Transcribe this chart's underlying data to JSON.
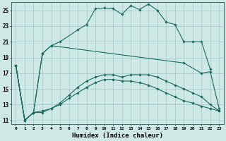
{
  "xlabel": "Humidex (Indice chaleur)",
  "background_color": "#cde8e5",
  "grid_color": "#a0c8c4",
  "line_color": "#1a6b5a",
  "xlim": [
    -0.5,
    23.5
  ],
  "ylim": [
    10.5,
    26.0
  ],
  "yticks": [
    11,
    13,
    15,
    17,
    19,
    21,
    23,
    25
  ],
  "xticks": [
    0,
    1,
    2,
    3,
    4,
    5,
    6,
    7,
    8,
    9,
    10,
    11,
    12,
    13,
    14,
    15,
    16,
    17,
    18,
    19,
    20,
    21,
    22,
    23
  ],
  "s1_x": [
    0,
    1,
    2,
    3,
    4,
    5,
    7,
    8,
    9,
    10,
    11,
    12,
    13,
    14,
    15,
    16,
    17,
    18,
    19,
    20,
    21,
    22
  ],
  "s1_y": [
    18,
    11,
    12,
    19.5,
    20.5,
    21.0,
    22.5,
    23.2,
    25.2,
    25.3,
    25.2,
    24.5,
    25.6,
    25.1,
    25.8,
    25.0,
    23.5,
    23.2,
    21.0,
    21.0,
    21.0,
    17.5
  ],
  "s2_x": [
    0,
    1,
    2,
    3,
    4,
    19,
    21,
    22,
    23
  ],
  "s2_y": [
    18,
    11,
    12,
    19.5,
    20.5,
    18.3,
    17.0,
    17.2,
    12.5
  ],
  "s3_x": [
    0,
    1,
    2,
    3,
    4,
    5,
    6,
    7,
    8,
    9,
    10,
    11,
    12,
    13,
    14,
    15,
    16,
    17,
    18,
    19,
    20,
    21,
    22,
    23
  ],
  "s3_y": [
    18,
    11,
    12,
    12.2,
    12.5,
    13.0,
    13.8,
    14.5,
    15.2,
    15.8,
    16.2,
    16.2,
    16.0,
    16.0,
    15.8,
    15.5,
    15.0,
    14.5,
    14.0,
    13.5,
    13.2,
    12.8,
    12.5,
    12.2
  ],
  "s4_x": [
    0,
    1,
    2,
    3,
    4,
    5,
    6,
    7,
    8,
    9,
    10,
    11,
    12,
    13,
    14,
    15,
    16,
    17,
    18,
    19,
    20,
    21,
    22,
    23
  ],
  "s4_y": [
    18,
    11,
    12,
    12.0,
    12.5,
    13.2,
    14.2,
    15.2,
    16.0,
    16.5,
    16.8,
    16.8,
    16.5,
    16.8,
    16.8,
    16.8,
    16.5,
    16.0,
    15.5,
    15.0,
    14.5,
    14.0,
    13.0,
    12.2
  ]
}
